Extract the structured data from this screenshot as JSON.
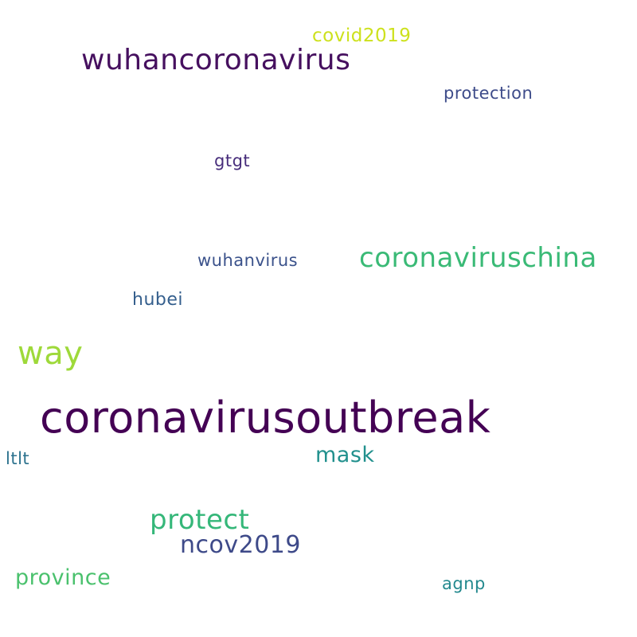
{
  "words": [
    {
      "text": "coronavirusoutbreak",
      "color": "#440154"
    },
    {
      "text": "wuhancoronavirus",
      "color": "#46105f"
    },
    {
      "text": "coronaviruschina",
      "color": "#3aba76"
    },
    {
      "text": "way",
      "color": "#9ed93a"
    },
    {
      "text": "protect",
      "color": "#35b779"
    },
    {
      "text": "ncov2019",
      "color": "#3e4a89"
    },
    {
      "text": "mask",
      "color": "#21908d"
    },
    {
      "text": "province",
      "color": "#4ac16d"
    },
    {
      "text": "covid2019",
      "color": "#cde11d"
    },
    {
      "text": "protection",
      "color": "#3e4c8a"
    },
    {
      "text": "wuhanvirus",
      "color": "#3b528b"
    },
    {
      "text": "hubei",
      "color": "#355f8d"
    },
    {
      "text": "gtgt",
      "color": "#472d7b"
    },
    {
      "text": "ltlt",
      "color": "#2c728e"
    },
    {
      "text": "agnp",
      "color": "#23898e"
    }
  ]
}
